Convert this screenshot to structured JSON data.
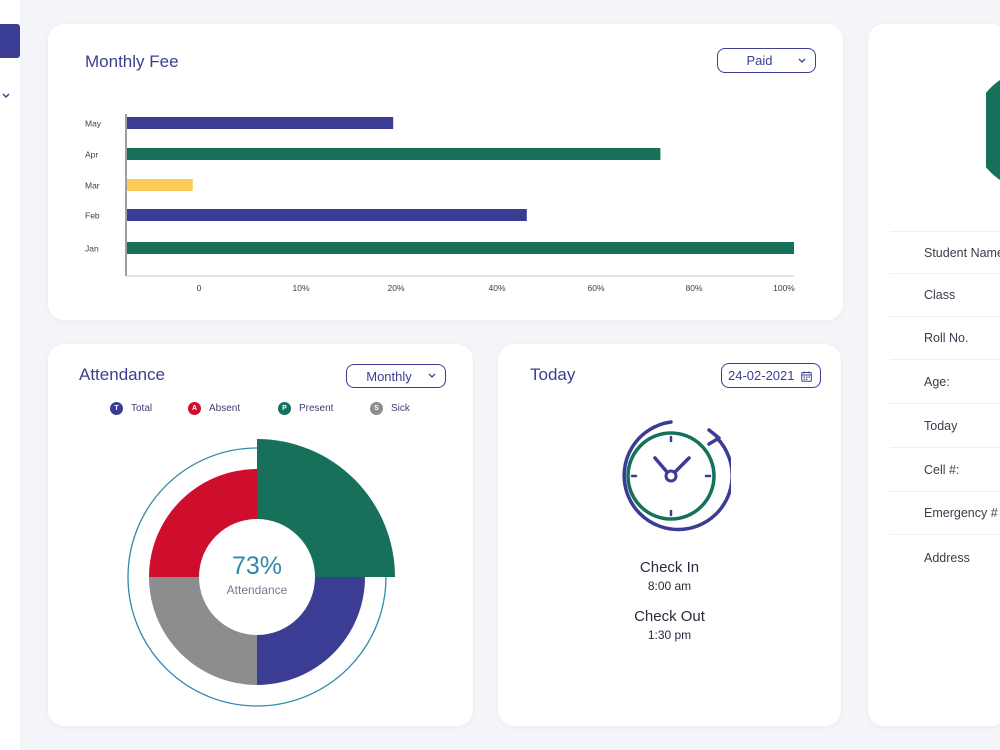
{
  "colors": {
    "navy": "#3b3c93",
    "green": "#16705a",
    "yellow": "#fccb5a",
    "red": "#cf0e2e",
    "gray": "#8c8d8e",
    "teal": "#2e8aa8"
  },
  "monthly_fee": {
    "title": "Monthly Fee",
    "filter_label": "Paid"
  },
  "chart_data": [
    {
      "type": "bar",
      "orientation": "horizontal",
      "title": "Monthly Fee",
      "categories": [
        "May",
        "Apr",
        "Mar",
        "Feb",
        "Jan"
      ],
      "values": [
        40,
        80,
        10,
        60,
        100
      ],
      "colors": [
        "#3b3c93",
        "#16705a",
        "#fccb5a",
        "#3b3c93",
        "#16705a"
      ],
      "x_ticks": [
        "0",
        "10%",
        "20%",
        "40%",
        "60%",
        "80%",
        "100%"
      ],
      "xlim": [
        0,
        100
      ],
      "grid": false
    },
    {
      "type": "pie",
      "title": "Attendance",
      "series": [
        {
          "name": "Present",
          "value": 25,
          "color": "#16705a"
        },
        {
          "name": "Total",
          "value": 25,
          "color": "#3b3c93"
        },
        {
          "name": "Sick",
          "value": 25,
          "color": "#8c8d8e"
        },
        {
          "name": "Absent",
          "value": 25,
          "color": "#cf0e2e"
        }
      ],
      "center_value": "73%",
      "center_label": "Attendance",
      "legend_position": "top"
    }
  ],
  "attendance": {
    "title": "Attendance",
    "filter_label": "Monthly",
    "legend": [
      {
        "letter": "T",
        "label": "Total",
        "color": "#3b3c93"
      },
      {
        "letter": "A",
        "label": "Absent",
        "color": "#cf0e2e"
      },
      {
        "letter": "P",
        "label": "Present",
        "color": "#16705a"
      },
      {
        "letter": "S",
        "label": "Sick",
        "color": "#8c8d8e"
      }
    ],
    "center_value": "73%",
    "center_label": "Attendance"
  },
  "today": {
    "title": "Today",
    "date": "24-02-2021",
    "check_in_label": "Check In",
    "check_in_time": "8:00 am",
    "check_out_label": "Check Out",
    "check_out_time": "1:30 pm"
  },
  "student_info": {
    "fields": [
      "Student Name",
      "Class",
      "Roll No.",
      "Age:",
      "Today",
      "Cell #:",
      "Emergency #",
      "Address"
    ]
  },
  "icons": {
    "sidebar_chevron": "chevron-down-icon",
    "calendar": "calendar-icon",
    "clock": "clock-refresh-icon"
  }
}
